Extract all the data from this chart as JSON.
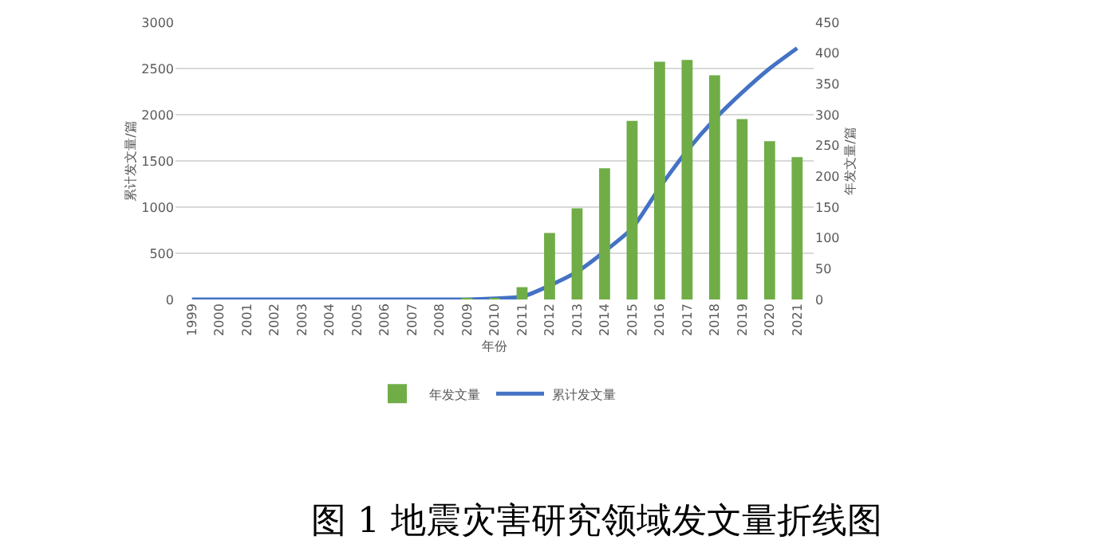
{
  "chart_data": {
    "type": "bar",
    "title": "图 1 地震灾害研究领域发文量折线图",
    "xlabel": "年份",
    "ylabel": "累计发文量/篇",
    "y2label": "年发文量/篇",
    "categories": [
      "1999",
      "2000",
      "2001",
      "2002",
      "2003",
      "2004",
      "2005",
      "2006",
      "2007",
      "2008",
      "2009",
      "2010",
      "2011",
      "2012",
      "2013",
      "2014",
      "2015",
      "2016",
      "2017",
      "2018",
      "2019",
      "2020",
      "2021"
    ],
    "series": [
      {
        "name": "年发文量",
        "axis": "y2",
        "color": "#70ad47",
        "values": [
          0,
          0,
          0,
          0,
          0,
          0,
          0,
          0,
          0,
          0,
          1,
          2,
          20,
          108,
          148,
          213,
          290,
          386,
          389,
          364,
          293,
          257,
          231
        ]
      },
      {
        "name": "累计发文量",
        "type": "line",
        "axis": "y",
        "color": "#4472c4",
        "values": [
          0,
          0,
          0,
          0,
          0,
          0,
          0,
          0,
          0,
          0,
          0,
          10,
          30,
          150,
          300,
          520,
          770,
          1210,
          1610,
          1950,
          2240,
          2500,
          2720
        ]
      }
    ],
    "ylim": [
      0,
      3000
    ],
    "yticks": [
      0,
      500,
      1000,
      1500,
      2000,
      2500,
      3000
    ],
    "y2lim": [
      0,
      450
    ],
    "y2ticks": [
      0,
      50,
      100,
      150,
      200,
      250,
      300,
      350,
      400,
      450
    ],
    "grid": "y",
    "legend": "bottom",
    "marker": "none",
    "line_style": "solid"
  }
}
